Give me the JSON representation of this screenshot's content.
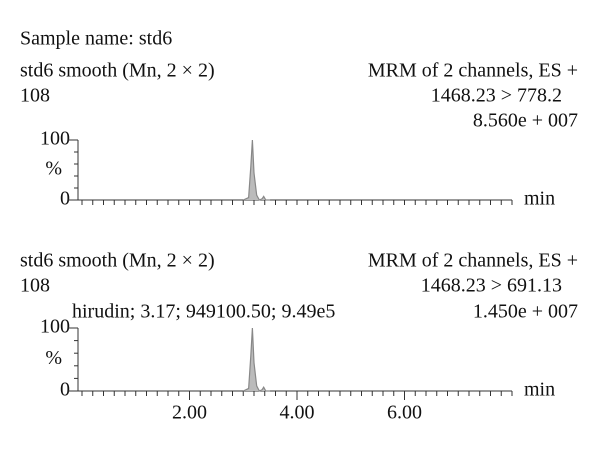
{
  "sample_name": "Sample name: std6",
  "chart_data": [
    {
      "type": "line",
      "title": "std6 smooth (Mn, 2 × 2)",
      "subtitle": "108",
      "method": "MRM of 2 channels, ES +",
      "transition": "1468.23 > 778.2",
      "intensity": "8.560e + 007",
      "ylabel": "%",
      "xlabel": "min",
      "xlim": [
        0,
        8
      ],
      "ylim": [
        0,
        100
      ],
      "yticks": [
        0,
        100
      ],
      "series": [
        {
          "name": "std6",
          "color": "#888888",
          "x": [
            3.0,
            3.1,
            3.14,
            3.17,
            3.2,
            3.25,
            3.3,
            3.35,
            3.38,
            3.42,
            3.5
          ],
          "values": [
            0,
            4,
            55,
            100,
            45,
            8,
            0,
            2,
            6,
            0,
            0
          ]
        }
      ]
    },
    {
      "type": "line",
      "title": "std6 smooth (Mn, 2 × 2)",
      "subtitle": "108",
      "method": "MRM of 2 channels, ES +",
      "transition": "1468.23 > 691.13",
      "intensity": "1.450e + 007",
      "annotation": "hirudin; 3.17; 949100.50; 9.49e5",
      "ylabel": "%",
      "xlabel": "min",
      "xlim": [
        0,
        8
      ],
      "ylim": [
        0,
        100
      ],
      "yticks": [
        0,
        100
      ],
      "xticks": [
        {
          "value": 2,
          "label": "2.00"
        },
        {
          "value": 4,
          "label": "4.00"
        },
        {
          "value": 6,
          "label": "6.00"
        }
      ],
      "series": [
        {
          "name": "std6",
          "color": "#888888",
          "x": [
            3.0,
            3.1,
            3.14,
            3.17,
            3.2,
            3.25,
            3.3,
            3.35,
            3.38,
            3.42,
            3.5
          ],
          "values": [
            0,
            4,
            55,
            100,
            45,
            8,
            0,
            2,
            6,
            0,
            0
          ]
        }
      ]
    }
  ]
}
